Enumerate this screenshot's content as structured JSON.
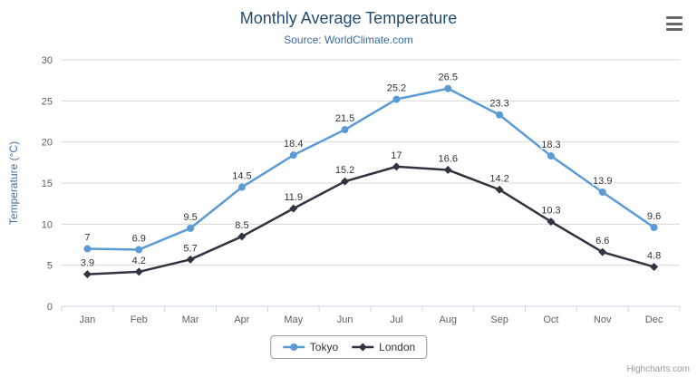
{
  "chart": {
    "title": "Monthly Average Temperature",
    "subtitle": "Source: WorldClimate.com",
    "credits": "Highcharts.com"
  },
  "icons": {
    "export_menu": "hamburger-menu-icon"
  },
  "chart_data": {
    "type": "line",
    "title": "Monthly Average Temperature",
    "subtitle": "Source: WorldClimate.com",
    "categories": [
      "Jan",
      "Feb",
      "Mar",
      "Apr",
      "May",
      "Jun",
      "Jul",
      "Aug",
      "Sep",
      "Oct",
      "Nov",
      "Dec"
    ],
    "series": [
      {
        "name": "Tokyo",
        "color": "#5b9bd5",
        "marker": "circle",
        "values": [
          7,
          6.9,
          9.5,
          14.5,
          18.4,
          21.5,
          25.2,
          26.5,
          23.3,
          18.3,
          13.9,
          9.6
        ]
      },
      {
        "name": "London",
        "color": "#2f3440",
        "marker": "diamond",
        "values": [
          3.9,
          4.2,
          5.7,
          8.5,
          11.9,
          15.2,
          17,
          16.6,
          14.2,
          10.3,
          6.6,
          4.8
        ]
      }
    ],
    "xlabel": "",
    "ylabel": "Temperature (°C)",
    "ylim": [
      0,
      30
    ],
    "ytick_step": 5,
    "grid": true,
    "data_labels": true,
    "legend_position": "bottom"
  }
}
